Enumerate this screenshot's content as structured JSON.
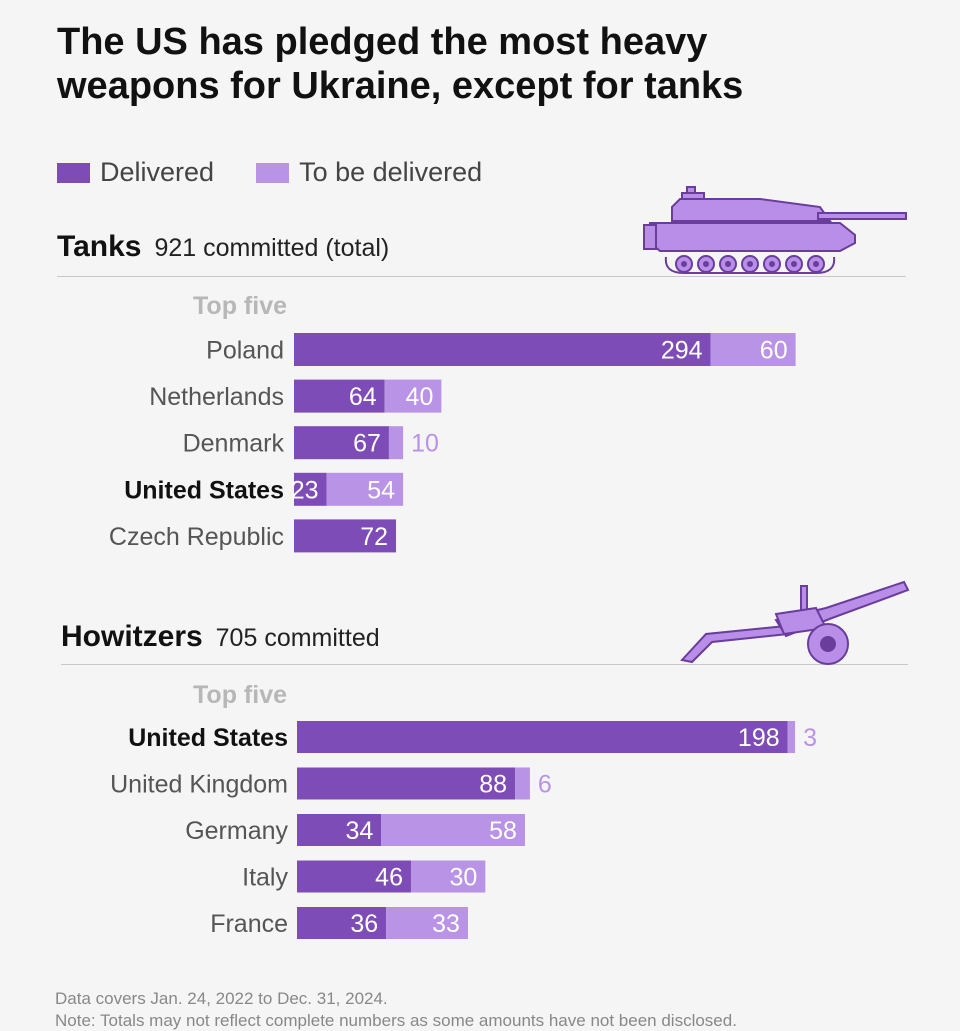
{
  "title": "The US has pledged the most heavy weapons for Ukraine, except for tanks",
  "legend": {
    "delivered": "Delivered",
    "to_be_delivered": "To be delivered"
  },
  "colors": {
    "delivered": "#7e4cb6",
    "to_be_delivered": "#b893e6",
    "icon_fill": "#b98ee8",
    "icon_stroke": "#6a3d9c"
  },
  "sections": {
    "tanks": {
      "name": "Tanks",
      "committed": "921 committed (total)",
      "subhead": "Top five"
    },
    "howitzers": {
      "name": "Howitzers",
      "committed": "705 committed",
      "subhead": "Top five"
    }
  },
  "icons": {
    "tanks": "tank-icon",
    "howitzers": "howitzer-icon"
  },
  "chart_data": [
    {
      "type": "bar",
      "stacked": true,
      "orientation": "horizontal",
      "title": "Tanks",
      "categories": [
        "Poland",
        "Netherlands",
        "Denmark",
        "United States",
        "Czech Republic"
      ],
      "highlight": "United States",
      "series": [
        {
          "name": "Delivered",
          "values": [
            294,
            64,
            67,
            23,
            72
          ]
        },
        {
          "name": "To be delivered",
          "values": [
            60,
            40,
            10,
            54,
            0
          ]
        }
      ]
    },
    {
      "type": "bar",
      "stacked": true,
      "orientation": "horizontal",
      "title": "Howitzers",
      "categories": [
        "United States",
        "United Kingdom",
        "Germany",
        "Italy",
        "France"
      ],
      "highlight": "United States",
      "series": [
        {
          "name": "Delivered",
          "values": [
            198,
            88,
            34,
            46,
            36
          ]
        },
        {
          "name": "To be delivered",
          "values": [
            3,
            6,
            58,
            30,
            33
          ]
        }
      ]
    }
  ],
  "footnotes": [
    "Data covers Jan. 24, 2022 to Dec. 31, 2024.",
    "Note: Totals may not reflect complete numbers as some amounts have not been disclosed."
  ]
}
